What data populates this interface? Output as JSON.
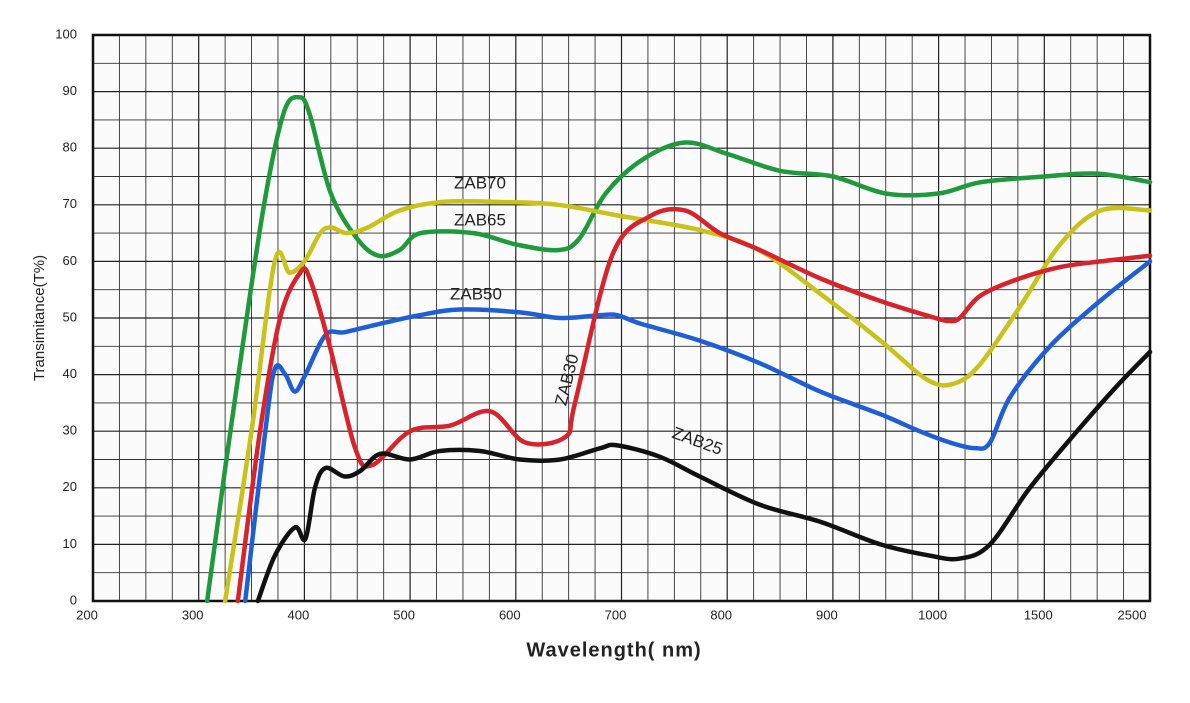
{
  "chart_data": {
    "type": "line",
    "y_label": "Transimitance(T%)",
    "x_label": "Wavelength( nm)",
    "xlim": [
      200,
      2500
    ],
    "xticks": [
      200,
      300,
      400,
      500,
      600,
      700,
      800,
      900,
      1000,
      1500,
      2500
    ],
    "ylim": [
      0,
      100
    ],
    "yticks": [
      0,
      10,
      20,
      30,
      40,
      50,
      60,
      70,
      80,
      90,
      100
    ],
    "grid": true,
    "series": [
      {
        "name": "ZAB65",
        "color": "#1e9a3c",
        "x": [
          308,
          330,
          360,
          380,
          395,
          405,
          425,
          450,
          470,
          490,
          510,
          560,
          600,
          640,
          660,
          685,
          720,
          760,
          800,
          850,
          900,
          950,
          1000,
          1200,
          1500,
          2000,
          2500
        ],
        "values": [
          0,
          30,
          68,
          86,
          89,
          86,
          72,
          64,
          61,
          62,
          65,
          65,
          63,
          62,
          64,
          72,
          78,
          81,
          79,
          76,
          75,
          72,
          72,
          74,
          75,
          75.5,
          74
        ]
      },
      {
        "name": "ZAB70",
        "color": "#c9c21a",
        "x": [
          325,
          350,
          372,
          386,
          400,
          415,
          425,
          440,
          460,
          490,
          530,
          585,
          640,
          700,
          775,
          830,
          890,
          945,
          990,
          1080,
          1200,
          1385,
          1650,
          2030,
          2500
        ],
        "values": [
          0,
          30,
          60,
          58,
          60,
          65,
          66,
          65,
          66,
          69,
          70.5,
          70.5,
          70,
          68,
          65.5,
          62,
          54,
          46,
          39,
          38.5,
          42,
          52,
          63,
          69,
          69
        ]
      },
      {
        "name": "ZAB50",
        "color": "#1f5fd6",
        "x": [
          344,
          363,
          372,
          382,
          391,
          401,
          420,
          438,
          472,
          509,
          547,
          604,
          642,
          680,
          696,
          718,
          774,
          831,
          888,
          945,
          982,
          1054,
          1172,
          1243,
          1338,
          1554,
          2027,
          2500
        ],
        "values": [
          0,
          30,
          41,
          40,
          37,
          40,
          47,
          47.5,
          49,
          50.5,
          51.5,
          51,
          50,
          50.5,
          50.5,
          49,
          46,
          42,
          37,
          33,
          30,
          28,
          27,
          28,
          36,
          45,
          53,
          60
        ]
      },
      {
        "name": "ZAB30",
        "color": "#d8232d",
        "x": [
          337,
          358,
          377,
          396,
          405,
          424,
          448,
          464,
          500,
          538,
          576,
          609,
          647,
          656,
          691,
          727,
          760,
          793,
          831,
          888,
          945,
          997,
          1050,
          1100,
          1200,
          1385,
          1650,
          2030,
          2500
        ],
        "values": [
          0,
          30,
          50,
          58,
          57,
          45,
          27,
          24,
          30,
          31,
          33.5,
          28,
          29,
          35,
          61,
          68,
          69,
          65,
          62,
          57,
          53,
          50,
          49.5,
          50,
          54,
          57,
          59,
          60,
          61
        ]
      },
      {
        "name": "ZAB25",
        "color": "#111111",
        "x": [
          356,
          372,
          391,
          401,
          410,
          420,
          438,
          453,
          472,
          500,
          528,
          566,
          604,
          642,
          680,
          696,
          736,
          774,
          831,
          888,
          945,
          992,
          1101,
          1243,
          1432,
          1810,
          2188,
          2500
        ],
        "values": [
          0,
          8,
          13,
          11,
          20,
          23.5,
          22,
          23,
          26,
          25,
          26.5,
          26.5,
          25,
          25,
          27,
          27.5,
          25.5,
          22,
          17,
          14,
          10,
          8,
          7.5,
          10,
          20,
          30,
          38,
          44
        ]
      }
    ]
  }
}
